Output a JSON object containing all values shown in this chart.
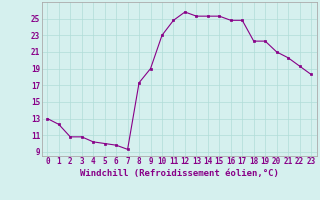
{
  "x": [
    0,
    1,
    2,
    3,
    4,
    5,
    6,
    7,
    8,
    9,
    10,
    11,
    12,
    13,
    14,
    15,
    16,
    17,
    18,
    19,
    20,
    21,
    22,
    23
  ],
  "y": [
    13.0,
    12.3,
    10.8,
    10.8,
    10.2,
    10.0,
    9.8,
    9.3,
    17.3,
    19.0,
    23.0,
    24.8,
    25.8,
    25.3,
    25.3,
    25.3,
    24.8,
    24.8,
    22.3,
    22.3,
    21.0,
    20.3,
    19.3,
    18.3
  ],
  "xlim": [
    -0.5,
    23.5
  ],
  "ylim": [
    8.5,
    27.0
  ],
  "yticks": [
    9,
    11,
    13,
    15,
    17,
    19,
    21,
    23,
    25
  ],
  "xticks": [
    0,
    1,
    2,
    3,
    4,
    5,
    6,
    7,
    8,
    9,
    10,
    11,
    12,
    13,
    14,
    15,
    16,
    17,
    18,
    19,
    20,
    21,
    22,
    23
  ],
  "xlabel": "Windchill (Refroidissement éolien,°C)",
  "line_color": "#880088",
  "marker": "s",
  "marker_size": 1.8,
  "bg_color": "#d5f0ee",
  "grid_color": "#b0ddd8",
  "tick_label_fontsize": 5.5,
  "xlabel_fontsize": 6.5,
  "linewidth": 0.8
}
